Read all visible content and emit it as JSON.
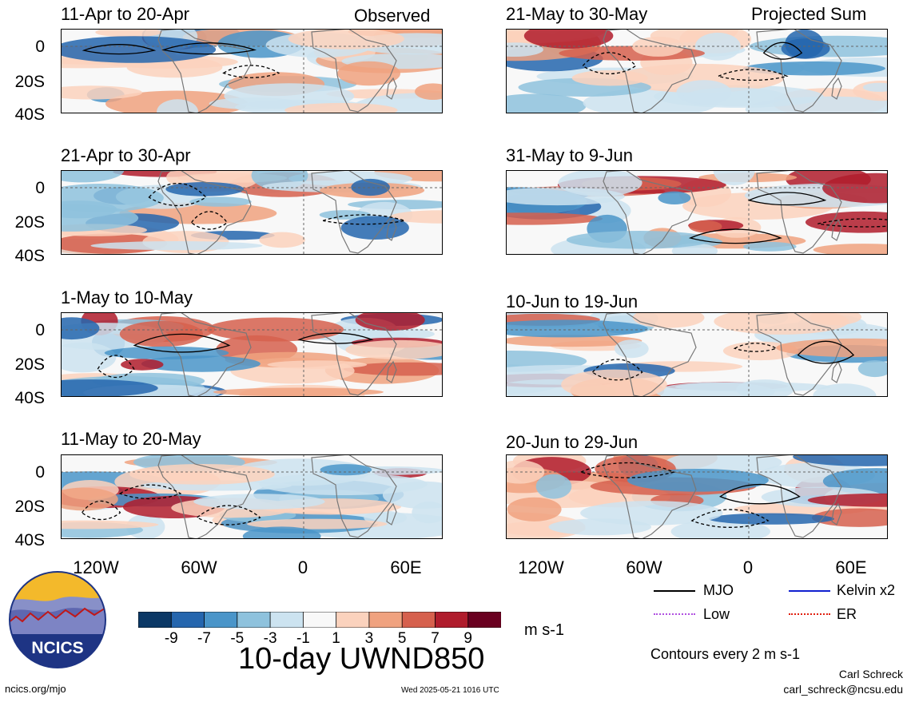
{
  "left_column": {
    "label": "Observed",
    "panels": [
      {
        "title": "11-Apr to 20-Apr"
      },
      {
        "title": "21-Apr to 30-Apr"
      },
      {
        "title": "1-May to 10-May"
      },
      {
        "title": "11-May to 20-May"
      }
    ]
  },
  "right_column": {
    "label": "Projected Sum",
    "panels": [
      {
        "title": "21-May to 30-May"
      },
      {
        "title": "31-May to 9-Jun"
      },
      {
        "title": "10-Jun to 19-Jun"
      },
      {
        "title": "20-Jun to 29-Jun"
      }
    ]
  },
  "axes": {
    "y_ticks": [
      "0",
      "20S",
      "40S"
    ],
    "x_ticks": [
      "120W",
      "60W",
      "0",
      "60E"
    ]
  },
  "colorbar": {
    "labels": [
      "-9",
      "-7",
      "-5",
      "-3",
      "-1",
      "1",
      "3",
      "5",
      "7",
      "9"
    ],
    "colors": [
      "#0b3866",
      "#2566ae",
      "#4a95c9",
      "#8ec2dd",
      "#cce3f0",
      "#f8f8f8",
      "#fbd2bd",
      "#f0a27f",
      "#d6604d",
      "#b01c2c",
      "#6a0020"
    ],
    "units": "m s-1"
  },
  "title": "10-day UWND850",
  "legend": {
    "items": [
      {
        "label": "MJO",
        "color": "#000000"
      },
      {
        "label": "Kelvin x2",
        "color": "#1020d0"
      },
      {
        "label": "Low",
        "color": "#b050e0"
      },
      {
        "label": "ER",
        "color": "#e02010"
      }
    ],
    "contours_note": "Contours every 2 m s-1"
  },
  "logo": {
    "text": "NCICS"
  },
  "footer": {
    "url": "ncics.org/mjo",
    "timestamp": "Wed 2025-05-21 1016 UTC",
    "author": "Carl Schreck",
    "email": "carl_schreck@ncsu.edu"
  }
}
